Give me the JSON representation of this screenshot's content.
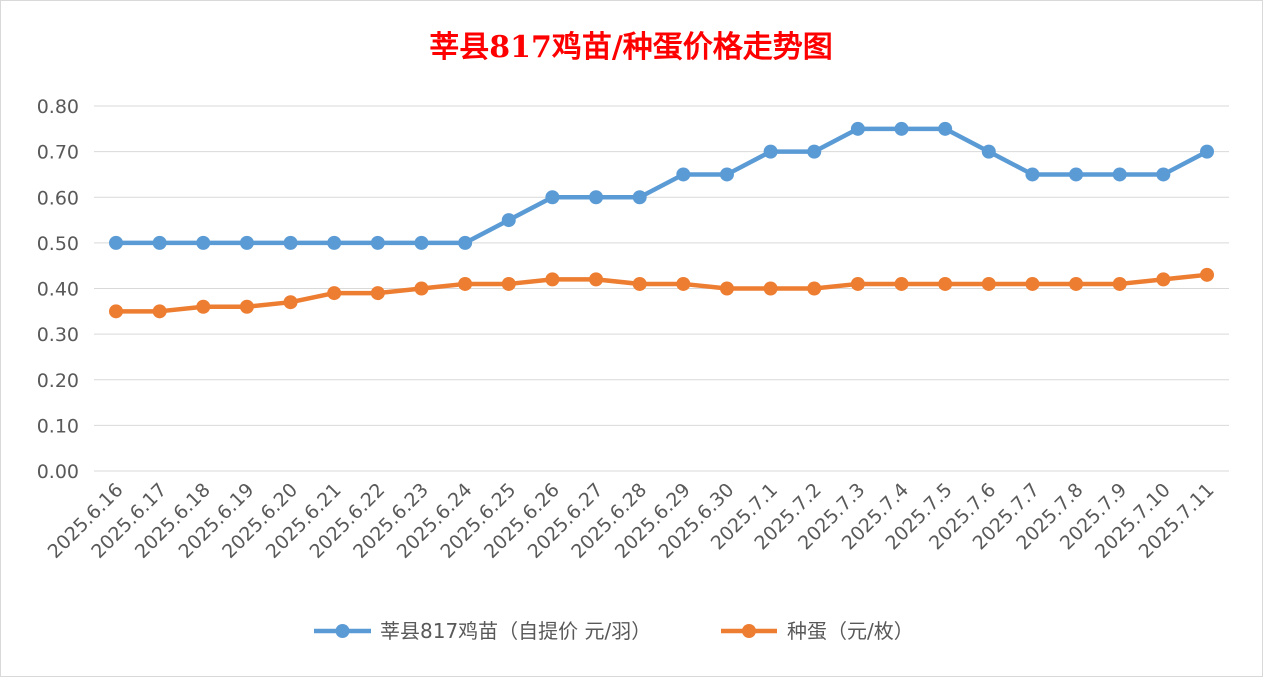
{
  "colors": {
    "title": "#ff0000",
    "series1": "#5b9bd5",
    "series2": "#ed7d31",
    "grid": "#d9d9d9",
    "axis_text": "#595959"
  },
  "chart_data": {
    "type": "line",
    "title": "莘县817鸡苗/种蛋价格走势图",
    "xlabel": "",
    "ylabel": "",
    "ylim": [
      0,
      0.8
    ],
    "yticks": [
      "0.00",
      "0.10",
      "0.20",
      "0.30",
      "0.40",
      "0.50",
      "0.60",
      "0.70",
      "0.80"
    ],
    "grid": "horizontal",
    "legend_position": "bottom",
    "categories": [
      "2025.6.16",
      "2025.6.17",
      "2025.6.18",
      "2025.6.19",
      "2025.6.20",
      "2025.6.21",
      "2025.6.22",
      "2025.6.23",
      "2025.6.24",
      "2025.6.25",
      "2025.6.26",
      "2025.6.27",
      "2025.6.28",
      "2025.6.29",
      "2025.6.30",
      "2025.7.1",
      "2025.7.2",
      "2025.7.3",
      "2025.7.4",
      "2025.7.5",
      "2025.7.6",
      "2025.7.7",
      "2025.7.8",
      "2025.7.9",
      "2025.7.10",
      "2025.7.11"
    ],
    "series": [
      {
        "name": "莘县817鸡苗（自提价 元/羽）",
        "values": [
          0.5,
          0.5,
          0.5,
          0.5,
          0.5,
          0.5,
          0.5,
          0.5,
          0.5,
          0.55,
          0.6,
          0.6,
          0.6,
          0.65,
          0.65,
          0.7,
          0.7,
          0.75,
          0.75,
          0.75,
          0.7,
          0.65,
          0.65,
          0.65,
          0.65,
          0.7
        ]
      },
      {
        "name": "种蛋（元/枚）",
        "values": [
          0.35,
          0.35,
          0.36,
          0.36,
          0.37,
          0.39,
          0.39,
          0.4,
          0.41,
          0.41,
          0.42,
          0.42,
          0.41,
          0.41,
          0.4,
          0.4,
          0.4,
          0.41,
          0.41,
          0.41,
          0.41,
          0.41,
          0.41,
          0.41,
          0.42,
          0.43
        ]
      }
    ]
  }
}
